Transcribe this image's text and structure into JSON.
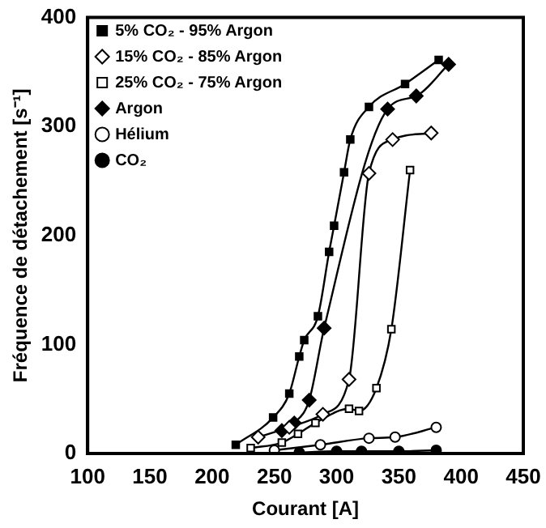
{
  "chart_data": {
    "type": "line",
    "xlabel": "Courant [A]",
    "ylabel": "Fréquence de détachement [s⁻¹]",
    "xlim": [
      100,
      450
    ],
    "xticks": [
      100,
      150,
      200,
      250,
      300,
      350,
      400,
      450
    ],
    "ylim": [
      0,
      400
    ],
    "yticks": [
      0,
      100,
      200,
      300,
      400
    ],
    "grid": false,
    "legend": "top left",
    "line_style": "solid",
    "series": [
      {
        "name": "5% CO₂ - 95% Argon",
        "color": "#000000",
        "marker": "square",
        "x": [
          219,
          249,
          262,
          270,
          274,
          285,
          294,
          298,
          306,
          311,
          326,
          355,
          382
        ],
        "values": [
          8,
          33,
          55,
          89,
          104,
          126,
          185,
          209,
          258,
          288,
          318,
          339,
          361
        ]
      },
      {
        "name": "15% CO₂ - 85% Argon",
        "color": "#000000",
        "colors": [
          "#ffffff",
          "#ffffff",
          "#ffffff",
          "#ffffff",
          "#ffffff",
          "#ffffff",
          "#ffffff"
        ],
        "marker": "diamond",
        "x": [
          237,
          262,
          289,
          310,
          326,
          345,
          376
        ],
        "values": [
          15,
          24,
          36,
          68,
          257,
          288,
          294
        ]
      },
      {
        "name": "25% CO₂ - 75% Argon",
        "color": "#000000",
        "colors": [
          "#ffffff",
          "#ffffff",
          "#ffffff",
          "#ffffff",
          "#ffffff",
          "#ffffff",
          "#ffffff",
          "#ffffff",
          "#ffffff"
        ],
        "marker": "square",
        "x": [
          231,
          256,
          269,
          283,
          310,
          318,
          332,
          344,
          359
        ],
        "values": [
          5,
          10,
          18,
          28,
          41,
          39,
          60,
          114,
          260
        ]
      },
      {
        "name": "Argon",
        "color": "#000000",
        "marker": "diamond",
        "x": [
          256,
          266,
          278,
          290,
          341,
          364,
          390
        ],
        "values": [
          21,
          28,
          49,
          115,
          316,
          328,
          357
        ]
      },
      {
        "name": "Hélium",
        "color": "#000000",
        "colors": [
          "#ffffff",
          "#ffffff",
          "#ffffff",
          "#ffffff",
          "#ffffff"
        ],
        "marker": "circle",
        "x": [
          250,
          287,
          326,
          347,
          380
        ],
        "values": [
          3,
          8,
          14,
          15,
          24
        ]
      },
      {
        "name": "CO₂",
        "color": "#000000",
        "marker": "circle",
        "x": [
          270,
          300,
          320,
          350,
          380
        ],
        "values": [
          1,
          2,
          2,
          2,
          3
        ]
      }
    ]
  }
}
